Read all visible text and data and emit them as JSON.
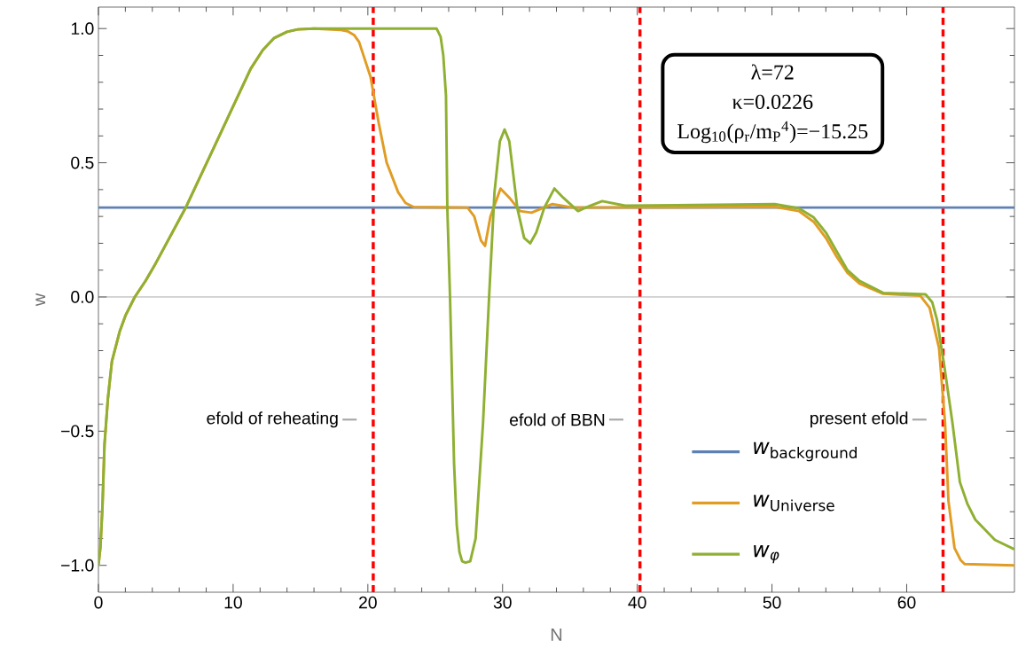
{
  "chart_data": {
    "type": "line",
    "xlabel": "N",
    "ylabel": "w",
    "xlim": [
      0,
      68
    ],
    "ylim": [
      -1.1,
      1.08
    ],
    "xticks": [
      0,
      10,
      20,
      30,
      40,
      50,
      60
    ],
    "yticks": [
      {
        "value": -1,
        "label": "−1.0"
      },
      {
        "value": -0.5,
        "label": "−0.5"
      },
      {
        "value": 0,
        "label": "0.0"
      },
      {
        "value": 0.5,
        "label": "0.5"
      },
      {
        "value": 1,
        "label": "1.0"
      }
    ],
    "legend": "bottom right",
    "series": [
      {
        "name": "w_{\\mathrm{background}}",
        "color": "#5e81b5",
        "x": [
          0,
          68
        ],
        "values": [
          0.333,
          0.333
        ]
      },
      {
        "name": "w_{\\mathrm{Universe}}",
        "color": "#e19c24",
        "x": [
          0,
          0.15,
          0.3,
          0.45,
          0.7,
          1.0,
          1.57,
          2.0,
          2.7,
          3.5,
          4.15,
          6.45,
          8.75,
          11.3,
          12.2,
          13.05,
          14.0,
          14.8,
          16,
          18.0,
          18.5,
          19.0,
          19.35,
          20.2,
          20.8,
          21.4,
          22.25,
          22.8,
          23.4,
          27.4,
          27.9,
          28.4,
          28.7,
          29.1,
          29.85,
          30.5,
          31.3,
          32.15,
          33.7,
          35.2,
          50.2,
          52,
          53.1,
          54.0,
          54.8,
          55.6,
          56.5,
          58.25,
          61.0,
          61.7,
          62.4,
          62.85,
          63.1,
          63.55,
          64.0,
          64.3,
          68
        ],
        "values": [
          -1.0,
          -0.93,
          -0.78,
          -0.55,
          -0.38,
          -0.24,
          -0.13,
          -0.07,
          0.0,
          0.06,
          0.116,
          0.33,
          0.576,
          0.85,
          0.92,
          0.965,
          0.988,
          0.997,
          1.0,
          0.995,
          0.99,
          0.975,
          0.95,
          0.82,
          0.65,
          0.5,
          0.39,
          0.35,
          0.335,
          0.333,
          0.3,
          0.21,
          0.19,
          0.3,
          0.404,
          0.37,
          0.32,
          0.314,
          0.346,
          0.333,
          0.336,
          0.32,
          0.28,
          0.22,
          0.15,
          0.09,
          0.05,
          0.012,
          0.005,
          -0.04,
          -0.19,
          -0.47,
          -0.76,
          -0.935,
          -0.98,
          -0.995,
          -1.0
        ]
      },
      {
        "name": "w_{\\phi}",
        "color": "#8fb032",
        "x": [
          0,
          0.15,
          0.3,
          0.45,
          0.7,
          1.0,
          1.57,
          2.0,
          2.7,
          3.5,
          4.15,
          6.45,
          8.75,
          11.3,
          12.2,
          13.05,
          14.0,
          14.8,
          16,
          25.1,
          25.4,
          25.6,
          25.8,
          25.9,
          26.1,
          26.4,
          26.6,
          26.8,
          27.0,
          27.25,
          27.6,
          28.0,
          28.55,
          29.0,
          29.4,
          29.8,
          30.15,
          30.5,
          31.1,
          31.6,
          32.05,
          32.5,
          33.1,
          33.85,
          34.5,
          35.6,
          36.5,
          37.4,
          39.1,
          50.2,
          52,
          53.1,
          54.0,
          54.8,
          55.6,
          56.5,
          58.25,
          61.4,
          61.9,
          62.25,
          62.8,
          63.4,
          63.95,
          64.5,
          65.1,
          66.55,
          68
        ],
        "values": [
          -1.0,
          -0.93,
          -0.78,
          -0.55,
          -0.38,
          -0.24,
          -0.13,
          -0.07,
          0.0,
          0.06,
          0.116,
          0.33,
          0.576,
          0.85,
          0.92,
          0.965,
          0.988,
          0.997,
          1.0,
          1.0,
          0.97,
          0.9,
          0.75,
          0.33,
          0.0,
          -0.62,
          -0.85,
          -0.95,
          -0.985,
          -0.99,
          -0.985,
          -0.9,
          -0.47,
          0.0,
          0.39,
          0.58,
          0.624,
          0.58,
          0.33,
          0.22,
          0.2,
          0.24,
          0.333,
          0.404,
          0.37,
          0.32,
          0.34,
          0.357,
          0.34,
          0.346,
          0.33,
          0.296,
          0.24,
          0.17,
          0.1,
          0.06,
          0.015,
          0.01,
          -0.02,
          -0.085,
          -0.26,
          -0.47,
          -0.69,
          -0.77,
          -0.83,
          -0.905,
          -0.94
        ]
      }
    ],
    "ref_lines": [
      {
        "axis": "x",
        "value": 20.4,
        "label": "efold of reheating",
        "color": "#ff0000",
        "line_style": "dashed"
      },
      {
        "axis": "x",
        "value": 40.2,
        "label": "efold of BBN",
        "color": "#ff0000",
        "line_style": "dashed"
      },
      {
        "axis": "x",
        "value": 62.7,
        "label": "present efold",
        "color": "#ff0000",
        "line_style": "dashed"
      },
      {
        "axis": "y",
        "value": 0,
        "color": "#808080",
        "line_style": "solid"
      }
    ],
    "annotations": [
      "λ=72",
      "κ=0.0226",
      "Log$_{10}$(ρ$_{r}$/m$_{P}$$^{4}$)=−15.25"
    ]
  }
}
